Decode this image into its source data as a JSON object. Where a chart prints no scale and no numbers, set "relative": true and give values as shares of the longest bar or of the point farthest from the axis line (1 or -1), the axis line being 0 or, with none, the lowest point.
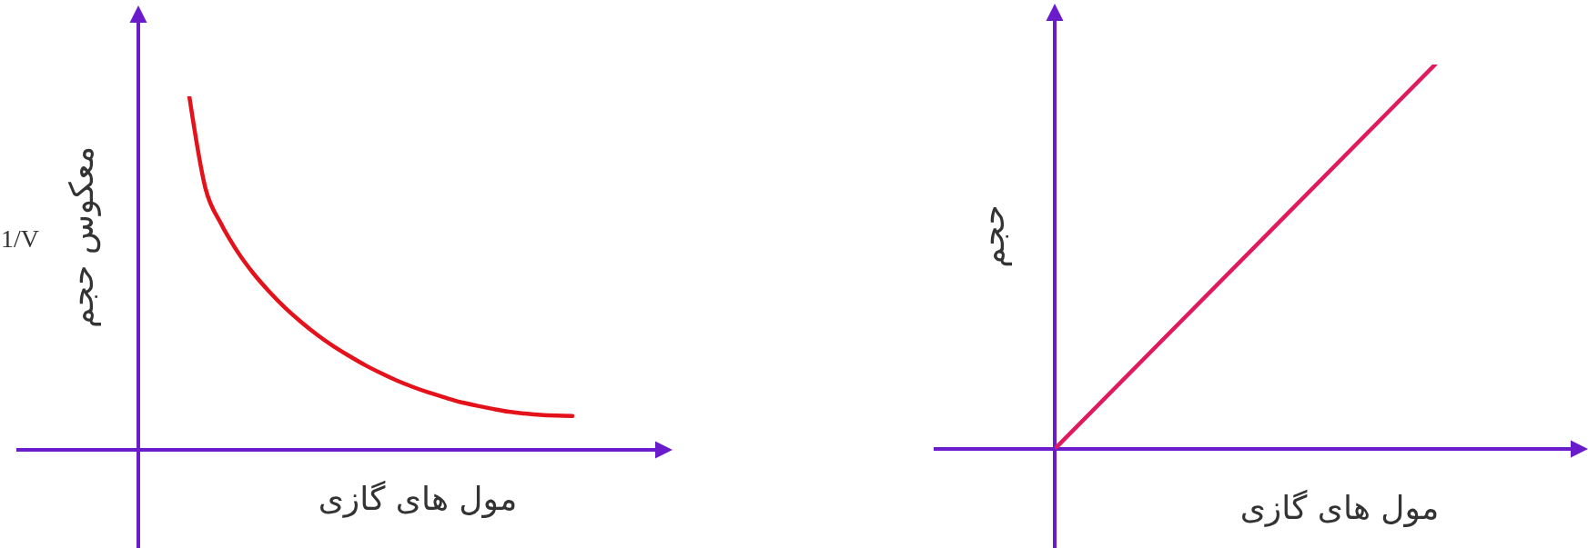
{
  "chart_data": [
    {
      "type": "line",
      "xlabel": "مول های گازی",
      "ylabel": "معکوس حجم",
      "annotations": [
        "1/V"
      ],
      "relative": true,
      "marker": "none",
      "color": "#e3121b",
      "categories": [
        null,
        null,
        null,
        null,
        null,
        null,
        null,
        null,
        null,
        null,
        null,
        null,
        null,
        null,
        null,
        null,
        null,
        null,
        null,
        null,
        null,
        null,
        null,
        null,
        null
      ],
      "values": [
        1,
        0.742,
        0.639,
        0.562,
        0.5,
        0.448,
        0.402,
        0.362,
        0.326,
        0.294,
        0.266,
        0.24,
        0.217,
        0.196,
        0.178,
        0.162,
        0.148,
        0.135,
        0.125,
        0.116,
        0.108,
        0.103,
        0.099,
        0.097,
        0.096
      ]
    },
    {
      "type": "line",
      "xlabel": "مول های گازی",
      "ylabel": "حجم",
      "relative": true,
      "marker": "none",
      "color": "#e01a5b",
      "categories": [
        null,
        null
      ],
      "values": [
        0,
        1
      ]
    }
  ]
}
